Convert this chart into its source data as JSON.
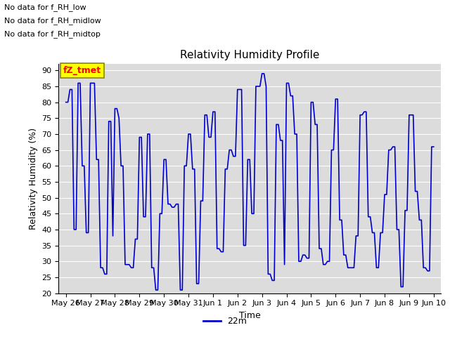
{
  "title": "Relativity Humidity Profile",
  "ylabel": "Relativity Humidity (%)",
  "xlabel": "Time",
  "legend_label": "22m",
  "no_data_texts": [
    "No data for f_RH_low",
    "No data for f_RH_midlow",
    "No data for f_RH_midtop"
  ],
  "tz_tmet_label": "fZ_tmet",
  "ylim": [
    20,
    92
  ],
  "yticks": [
    20,
    25,
    30,
    35,
    40,
    45,
    50,
    55,
    60,
    65,
    70,
    75,
    80,
    85,
    90
  ],
  "line_color": "#0000CC",
  "background_color": "#DCDCDC",
  "x_tick_labels": [
    "May 26",
    "May 27",
    "May 28",
    "May 29",
    "May 30",
    "May 31",
    "Jun 1",
    "Jun 2",
    "Jun 3",
    "Jun 4",
    "Jun 5",
    "Jun 6",
    "Jun 7",
    "Jun 8",
    "Jun 9",
    "Jun 10"
  ],
  "x_tick_positions": [
    0,
    1,
    2,
    3,
    4,
    5,
    6,
    7,
    8,
    9,
    10,
    11,
    12,
    13,
    14,
    15
  ],
  "data_x": [
    0.0,
    0.083,
    0.167,
    0.25,
    0.333,
    0.417,
    0.5,
    0.583,
    0.667,
    0.75,
    0.833,
    0.917,
    1.0,
    1.083,
    1.167,
    1.25,
    1.333,
    1.417,
    1.5,
    1.583,
    1.667,
    1.75,
    1.833,
    1.917,
    2.0,
    2.083,
    2.167,
    2.25,
    2.333,
    2.417,
    2.5,
    2.583,
    2.667,
    2.75,
    2.833,
    2.917,
    3.0,
    3.083,
    3.167,
    3.25,
    3.333,
    3.417,
    3.5,
    3.583,
    3.667,
    3.75,
    3.833,
    3.917,
    4.0,
    4.083,
    4.167,
    4.25,
    4.333,
    4.417,
    4.5,
    4.583,
    4.667,
    4.75,
    4.833,
    4.917,
    5.0,
    5.083,
    5.167,
    5.25,
    5.333,
    5.417,
    5.5,
    5.583,
    5.667,
    5.75,
    5.833,
    5.917,
    6.0,
    6.083,
    6.167,
    6.25,
    6.333,
    6.417,
    6.5,
    6.583,
    6.667,
    6.75,
    6.833,
    6.917,
    7.0,
    7.083,
    7.167,
    7.25,
    7.333,
    7.417,
    7.5,
    7.583,
    7.667,
    7.75,
    7.833,
    7.917,
    8.0,
    8.083,
    8.167,
    8.25,
    8.333,
    8.417,
    8.5,
    8.583,
    8.667,
    8.75,
    8.833,
    8.917,
    9.0,
    9.083,
    9.167,
    9.25,
    9.333,
    9.417,
    9.5,
    9.583,
    9.667,
    9.75,
    9.833,
    9.917,
    10.0,
    10.083,
    10.167,
    10.25,
    10.333,
    10.417,
    10.5,
    10.583,
    10.667,
    10.75,
    10.833,
    10.917,
    11.0,
    11.083,
    11.167,
    11.25,
    11.333,
    11.417,
    11.5,
    11.583,
    11.667,
    11.75,
    11.833,
    11.917,
    12.0,
    12.083,
    12.167,
    12.25,
    12.333,
    12.417,
    12.5,
    12.583,
    12.667,
    12.75,
    12.833,
    12.917,
    13.0,
    13.083,
    13.167,
    13.25,
    13.333,
    13.417,
    13.5,
    13.583,
    13.667,
    13.75,
    13.833,
    13.917,
    14.0,
    14.083,
    14.167,
    14.25,
    14.333,
    14.417,
    14.5,
    14.583,
    14.667,
    14.75,
    14.833,
    14.917,
    15.0
  ],
  "data_y": [
    80,
    80,
    84,
    84,
    40,
    40,
    86,
    86,
    60,
    60,
    39,
    39,
    86,
    86,
    86,
    62,
    62,
    28,
    28,
    26,
    26,
    74,
    74,
    38,
    78,
    78,
    75,
    60,
    60,
    29,
    29,
    29,
    28,
    28,
    37,
    37,
    69,
    69,
    44,
    44,
    70,
    70,
    28,
    28,
    21,
    21,
    45,
    45,
    62,
    62,
    48,
    48,
    47,
    47,
    48,
    48,
    21,
    21,
    60,
    60,
    70,
    70,
    59,
    59,
    23,
    23,
    49,
    49,
    76,
    76,
    69,
    69,
    77,
    77,
    34,
    34,
    33,
    33,
    59,
    59,
    65,
    65,
    63,
    63,
    84,
    84,
    84,
    35,
    35,
    62,
    62,
    45,
    45,
    85,
    85,
    85,
    89,
    89,
    85,
    26,
    26,
    24,
    24,
    73,
    73,
    68,
    68,
    29,
    86,
    86,
    82,
    82,
    70,
    70,
    30,
    30,
    32,
    32,
    31,
    31,
    80,
    80,
    73,
    73,
    34,
    34,
    29,
    29,
    30,
    30,
    65,
    65,
    81,
    81,
    43,
    43,
    32,
    32,
    28,
    28,
    28,
    28,
    38,
    38,
    76,
    76,
    77,
    77,
    44,
    44,
    39,
    39,
    28,
    28,
    39,
    39,
    51,
    51,
    65,
    65,
    66,
    66,
    40,
    40,
    22,
    22,
    46,
    46,
    76,
    76,
    76,
    52,
    52,
    43,
    43,
    28,
    28,
    27,
    27,
    66,
    66
  ]
}
